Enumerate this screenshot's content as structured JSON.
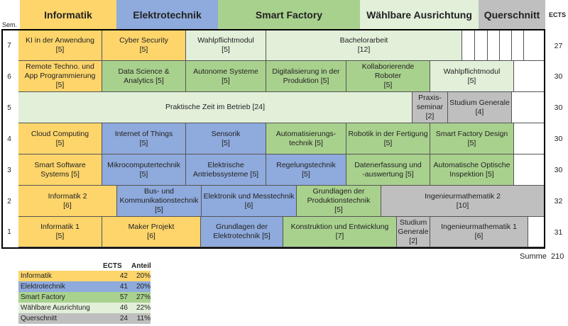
{
  "headers": {
    "inf": "Informatik",
    "ele": "Elektrotechnik",
    "sf": "Smart Factory",
    "wa": "Wählbare Ausrichtung",
    "qs": "Querschnitt",
    "sem": "Sem.",
    "ects": "ECTS"
  },
  "colors": {
    "informatik": "#fdd56b",
    "elektrotechnik": "#8faadc",
    "smart_factory": "#a9d18e",
    "waehlbare_ausrichtung": "#e2efd9",
    "querschnitt": "#bfbfbf"
  },
  "semesters": {
    "s7": {
      "num": "7",
      "ects": "27",
      "m1": "KI in der Anwendung\n[5]",
      "m2": "Cyber Security\n[5]",
      "m3": "Wahlpflichtmodul\n[5]",
      "m4": "Bachelorarbeit\n[12]"
    },
    "s6": {
      "num": "6",
      "ects": "30",
      "m1": "Remote Techno. und\nApp Programmierung\n[5]",
      "m2": "Data Science &\nAnalytics [5]",
      "m3": "Autonome Systeme\n[5]",
      "m4": "Digitalisierung in der\nProduktion [5]",
      "m5": "Kollaborierende Roboter\n[5]",
      "m6": "Wahlpflichtmodul\n[5]"
    },
    "s5": {
      "num": "5",
      "ects": "30",
      "m1": "Praktische Zeit im Betrieb [24]",
      "m2": "Praxis-\nseminar\n[2]",
      "m3": "Studium Generale\n[4]"
    },
    "s4": {
      "num": "4",
      "ects": "30",
      "m1": "Cloud Computing\n[5]",
      "m2": "Internet of Things\n[5]",
      "m3": "Sensorik\n[5]",
      "m4": "Automatisierungs-\ntechnik [5]",
      "m5": "Robotik in der Fertigung\n[5]",
      "m6": "Smart Factory Design\n[5]"
    },
    "s3": {
      "num": "3",
      "ects": "30",
      "m1": "Smart Software\nSystems [5]",
      "m2": "Mikrocomputertechnik\n[5]",
      "m3": "Elektrische\nAntriebssysteme [5]",
      "m4": "Regelungstechnik\n[5]",
      "m5": "Datenerfassung und\n-auswertung [5]",
      "m6": "Automatische Optische\nInspektion [5]"
    },
    "s2": {
      "num": "2",
      "ects": "32",
      "m1": "Informatik 2\n[6]",
      "m2": "Bus- und\nKommunikationstechnik\n[5]",
      "m3": "Elektronik und Messtechnik\n[6]",
      "m4": "Grundlagen der\nProduktionstechnik\n[5]",
      "m5": "Ingenieurmathematik 2\n[10]"
    },
    "s1": {
      "num": "1",
      "ects": "31",
      "m1": "Informatik 1\n[5]",
      "m2": "Maker Projekt\n[6]",
      "m3": "Grundlagen der\nElektrotechnik [5]",
      "m4": "Konstruktion und Entwicklung\n[7]",
      "m5": "Studium\nGenerale\n[2]",
      "m6": "Ingenieurmathematik 1\n[6]"
    }
  },
  "summe": {
    "label": "Summe",
    "value": "210"
  },
  "summary": {
    "col_ects": "ECTS",
    "col_anteil": "Anteil",
    "rows": [
      {
        "name": "Informatik",
        "ects": "42",
        "anteil": "20%"
      },
      {
        "name": "Elektrotechnik",
        "ects": "41",
        "anteil": "20%"
      },
      {
        "name": "Smart Factory",
        "ects": "57",
        "anteil": "27%"
      },
      {
        "name": "Wählbare Ausrichtung",
        "ects": "46",
        "anteil": "22%"
      },
      {
        "name": "Querschnitt",
        "ects": "24",
        "anteil": "11%"
      }
    ]
  }
}
